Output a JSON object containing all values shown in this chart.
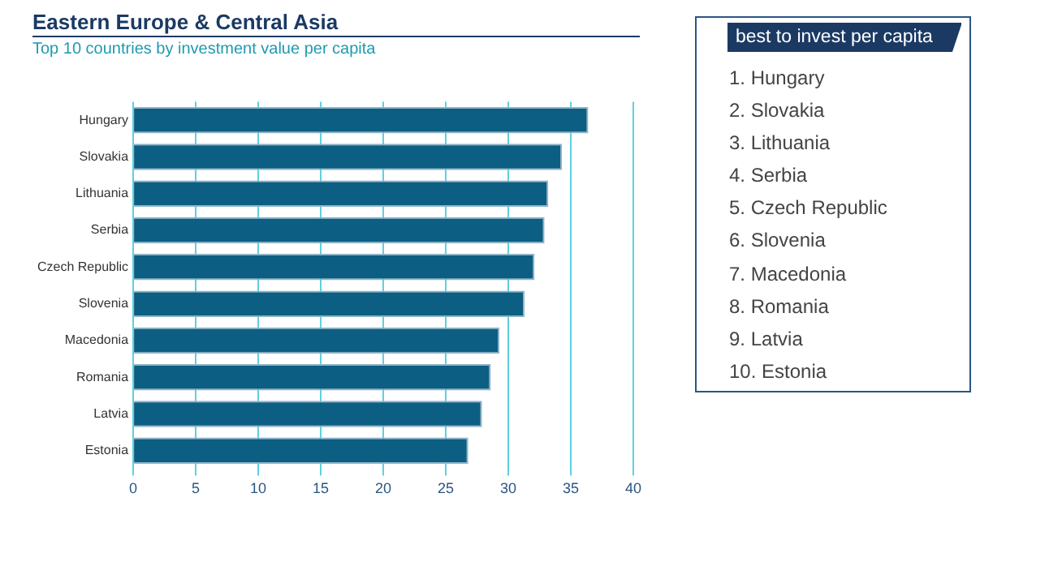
{
  "chart_data": [
    {
      "type": "bar",
      "orientation": "horizontal",
      "title": "Eastern Europe & Central Asia",
      "subtitle": "Top 10 countries by investment value per capita",
      "categories": [
        "Hungary",
        "Slovakia",
        "Lithuania",
        "Serbia",
        "Czech Republic",
        "Slovenia",
        "Macedonia",
        "Romania",
        "Latvia",
        "Estonia"
      ],
      "values": [
        36.4,
        34.3,
        33.2,
        32.9,
        32.1,
        31.3,
        29.3,
        28.6,
        27.9,
        26.8
      ],
      "color": "#0c5e82",
      "xlim": [
        0,
        40
      ],
      "xticks": [
        0,
        5,
        10,
        15,
        20,
        25,
        30,
        35,
        40
      ],
      "grid": "x",
      "legend": false
    },
    {
      "type": "other",
      "title": "best to invest per capita",
      "annotations": [
        "1. Hungary",
        "2. Slovakia",
        "3. Lithuania",
        "4. Serbia",
        "5. Czech Republic",
        "6. Slovenia",
        "7. Macedonia",
        "8. Romania",
        "9. Latvia",
        "10. Estonia"
      ]
    }
  ]
}
